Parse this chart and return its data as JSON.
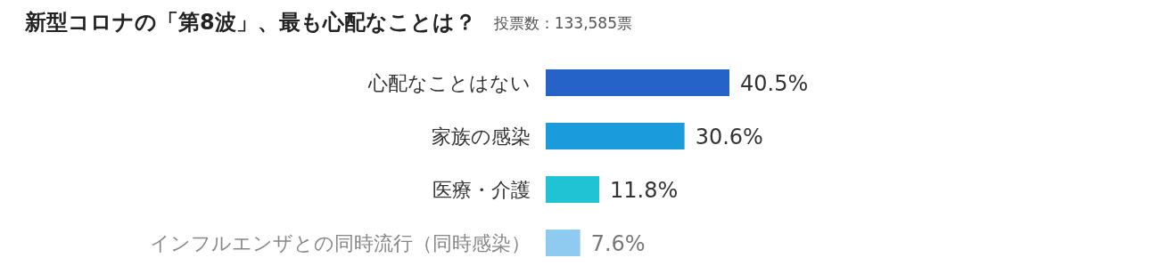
{
  "chart_data": {
    "type": "bar",
    "orientation": "horizontal",
    "title": "新型コロナの「第8波」、最も心配なことは？",
    "subtitle": "投票数：133,585票",
    "categories": [
      "心配なことはない",
      "家族の感染",
      "医療・介護",
      "インフルエンザとの同時流行（同時感染）"
    ],
    "values": [
      40.5,
      30.6,
      11.8,
      7.6
    ],
    "value_labels": [
      "40.5%",
      "30.6%",
      "11.8%",
      "7.6%"
    ],
    "colors": [
      "#2563c9",
      "#1a9bdb",
      "#1fc3d3",
      "#8fcaf0"
    ]
  }
}
